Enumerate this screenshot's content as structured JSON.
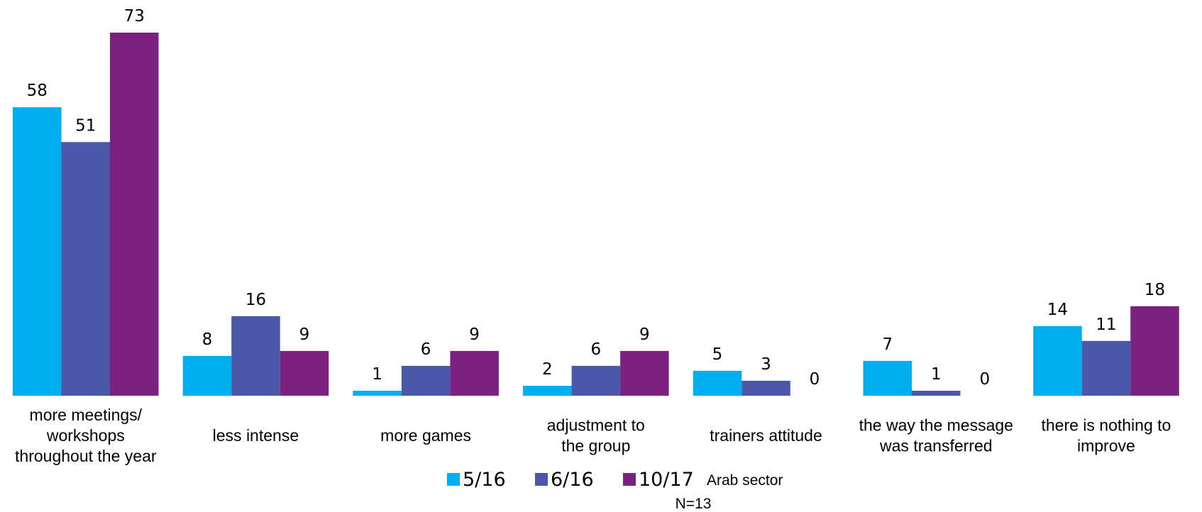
{
  "chart_data": {
    "type": "bar",
    "categories": [
      [
        "more meetings/",
        "workshops",
        "throughout the year"
      ],
      [
        "less intense"
      ],
      [
        "more games"
      ],
      [
        "adjustment to",
        "the group"
      ],
      [
        "trainers attitude"
      ],
      [
        "the way the message",
        "was transferred"
      ],
      [
        "there is nothing to",
        "improve"
      ]
    ],
    "series": [
      {
        "name": "5/16",
        "color": "#00AEEF",
        "values": [
          58,
          8,
          1,
          2,
          5,
          7,
          14
        ]
      },
      {
        "name": "6/16",
        "color": "#4B57A8",
        "values": [
          51,
          16,
          6,
          6,
          3,
          1,
          11
        ]
      },
      {
        "name": "10/17",
        "color": "#7B2180",
        "values": [
          73,
          9,
          9,
          9,
          0,
          0,
          18
        ]
      }
    ],
    "legend_position": "bottom-center",
    "legend_note": "Arab sector",
    "note": "N=13",
    "ylim": [
      0,
      73
    ],
    "grid": false
  }
}
